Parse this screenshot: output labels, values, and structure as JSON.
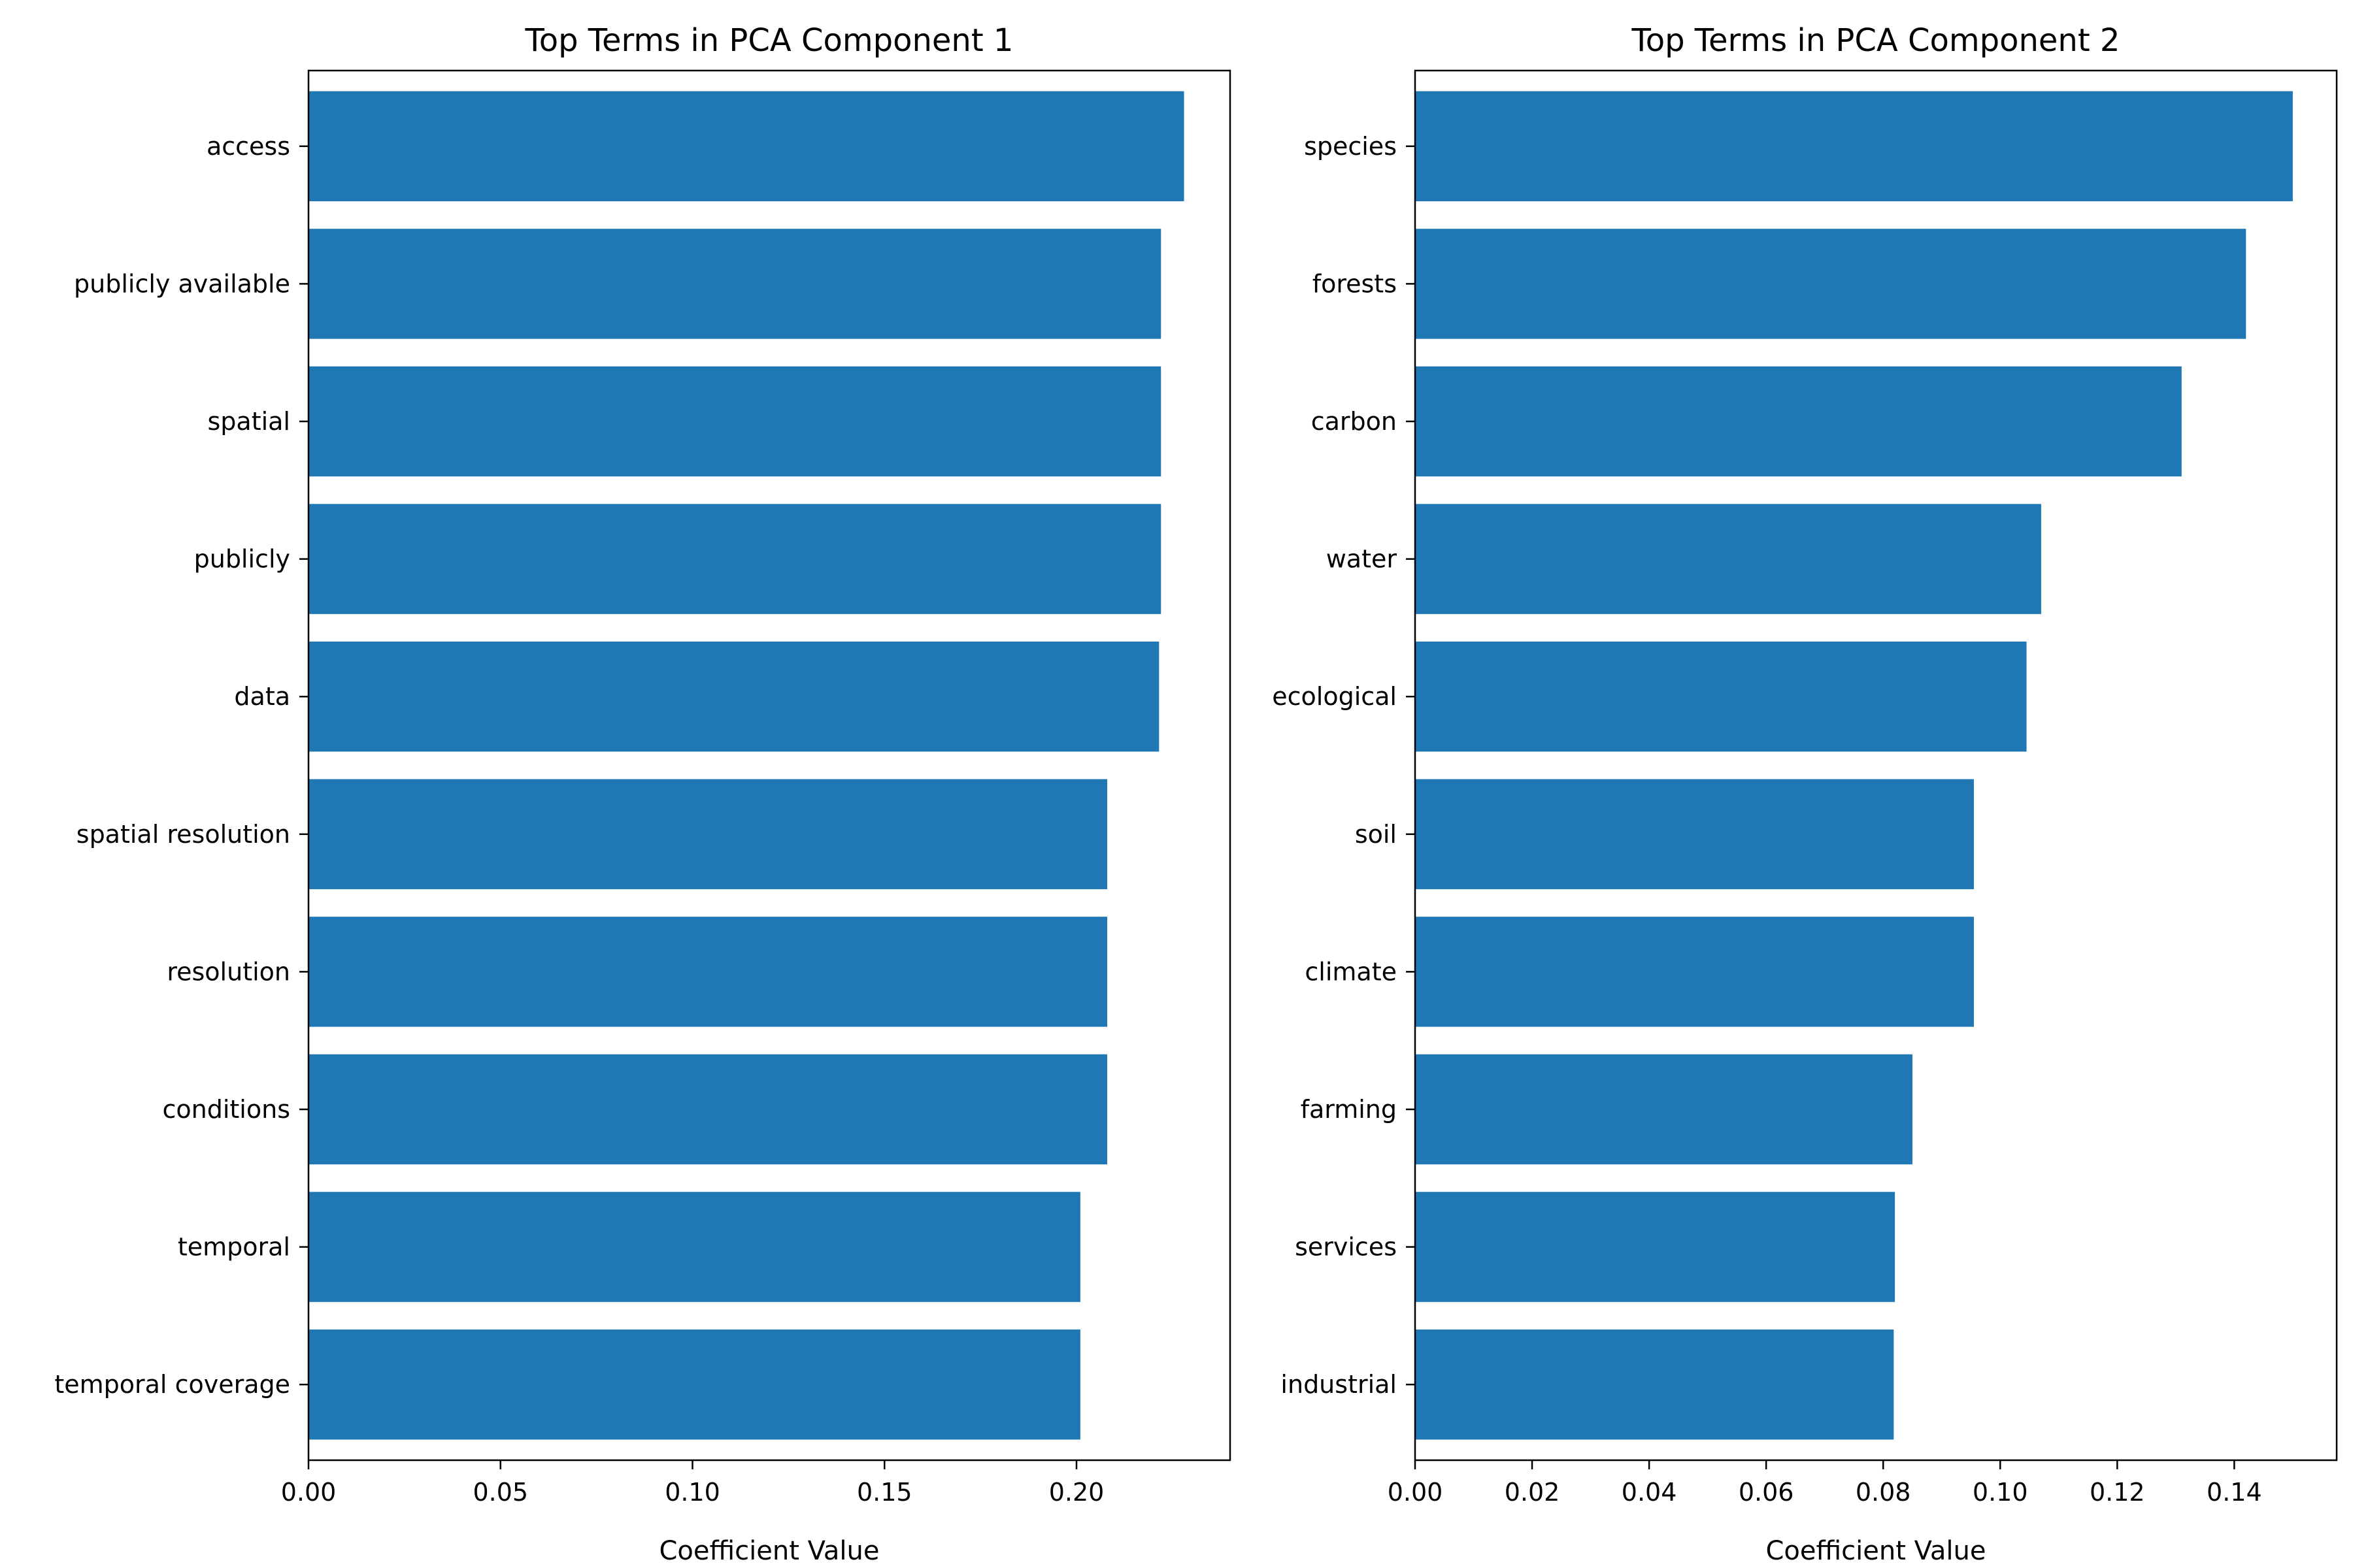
{
  "chart_data": [
    {
      "type": "bar",
      "orientation": "horizontal",
      "title": "Top Terms in PCA Component 1",
      "xlabel": "Coefficient Value",
      "ylabel": "",
      "categories": [
        "access",
        "publicly available",
        "spatial",
        "publicly",
        "data",
        "spatial resolution",
        "resolution",
        "conditions",
        "temporal",
        "temporal coverage"
      ],
      "values": [
        0.228,
        0.222,
        0.222,
        0.222,
        0.2215,
        0.208,
        0.208,
        0.208,
        0.201,
        0.201
      ],
      "xlim": [
        0,
        0.24
      ],
      "xticks": [
        "0.00",
        "0.05",
        "0.10",
        "0.15",
        "0.20"
      ],
      "grid": false,
      "bar_color": "#1f77b4"
    },
    {
      "type": "bar",
      "orientation": "horizontal",
      "title": "Top Terms in PCA Component 2",
      "xlabel": "Coefficient Value",
      "ylabel": "",
      "categories": [
        "species",
        "forests",
        "carbon",
        "water",
        "ecological",
        "soil",
        "climate",
        "farming",
        "services",
        "industrial"
      ],
      "values": [
        0.15,
        0.142,
        0.131,
        0.107,
        0.1045,
        0.0955,
        0.0955,
        0.085,
        0.082,
        0.0818
      ],
      "xlim": [
        0,
        0.1575
      ],
      "xticks": [
        "0.00",
        "0.02",
        "0.04",
        "0.06",
        "0.08",
        "0.10",
        "0.12",
        "0.14"
      ],
      "grid": false,
      "bar_color": "#1f77b4"
    }
  ]
}
